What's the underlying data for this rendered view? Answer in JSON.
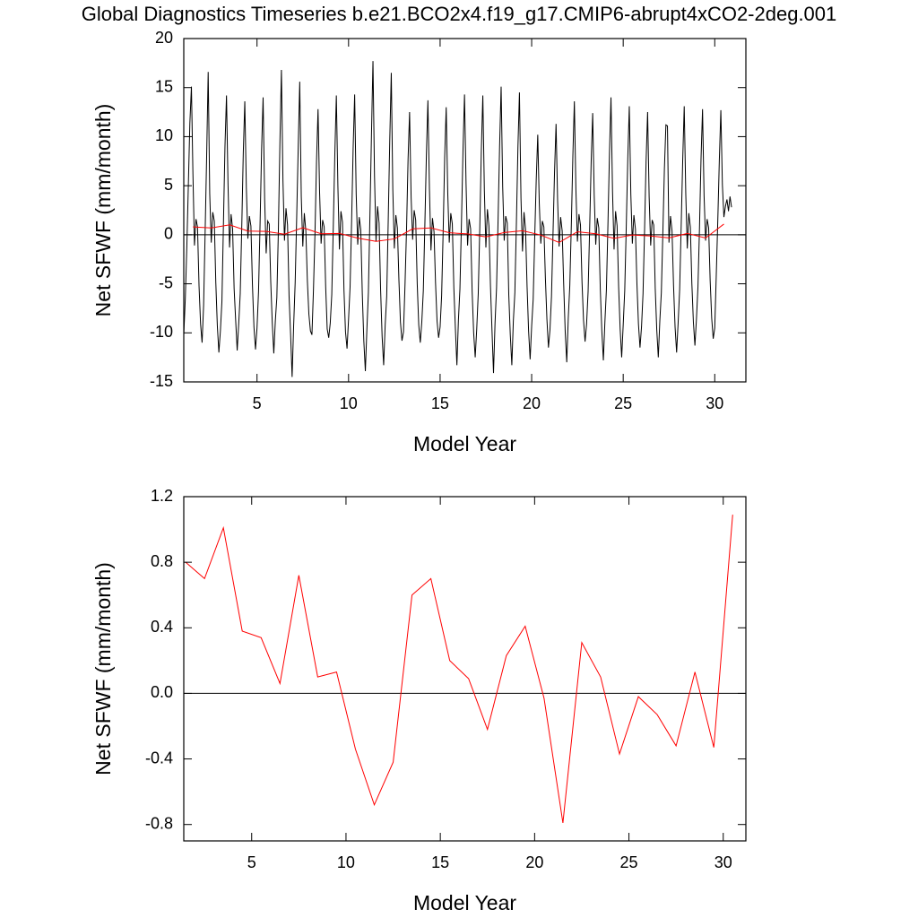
{
  "chart_data": [
    {
      "type": "line",
      "title": "Global Diagnostics Timeseries b.e21.BCO2x4.f19_g17.CMIP6-abrupt4xCO2-2deg.001",
      "x_label": "Model Year",
      "y_label": "Net SFWF (mm/month)",
      "xlim": [
        1,
        31.7
      ],
      "xticks": [
        5,
        10,
        15,
        20,
        25,
        30
      ],
      "ylim": [
        -15,
        20
      ],
      "yticks": [
        -15,
        -10,
        -5,
        0,
        5,
        10,
        15,
        20
      ],
      "zero_line": true,
      "series": [
        {
          "color": "#000000",
          "x": [
            1,
            1.083,
            1.167,
            1.25,
            1.333,
            1.417,
            1.5,
            1.583,
            1.667,
            1.75,
            1.833,
            1.917,
            2,
            2.083,
            2.167,
            2.25,
            2.333,
            2.417,
            2.5,
            2.583,
            2.667,
            2.75,
            2.833,
            2.917,
            3,
            3.083,
            3.167,
            3.25,
            3.333,
            3.417,
            3.5,
            3.583,
            3.667,
            3.75,
            3.833,
            3.917,
            4,
            4.083,
            4.167,
            4.25,
            4.333,
            4.417,
            4.5,
            4.583,
            4.667,
            4.75,
            4.833,
            4.917,
            5,
            5.083,
            5.167,
            5.25,
            5.333,
            5.417,
            5.5,
            5.583,
            5.667,
            5.75,
            5.833,
            5.917,
            6,
            6.083,
            6.167,
            6.25,
            6.333,
            6.417,
            6.5,
            6.583,
            6.667,
            6.75,
            6.833,
            6.917,
            7,
            7.083,
            7.167,
            7.25,
            7.333,
            7.417,
            7.5,
            7.583,
            7.667,
            7.75,
            7.833,
            7.917,
            8,
            8.083,
            8.167,
            8.25,
            8.333,
            8.417,
            8.5,
            8.583,
            8.667,
            8.75,
            8.833,
            8.917,
            9,
            9.083,
            9.167,
            9.25,
            9.333,
            9.417,
            9.5,
            9.583,
            9.667,
            9.75,
            9.833,
            9.917,
            10,
            10.083,
            10.167,
            10.25,
            10.333,
            10.417,
            10.5,
            10.583,
            10.667,
            10.75,
            10.833,
            10.917,
            11,
            11.083,
            11.167,
            11.25,
            11.333,
            11.417,
            11.5,
            11.583,
            11.667,
            11.75,
            11.833,
            11.917,
            12,
            12.083,
            12.167,
            12.25,
            12.333,
            12.417,
            12.5,
            12.583,
            12.667,
            12.75,
            12.833,
            12.917,
            13,
            13.083,
            13.167,
            13.25,
            13.333,
            13.417,
            13.5,
            13.583,
            13.667,
            13.75,
            13.833,
            13.917,
            14,
            14.083,
            14.167,
            14.25,
            14.333,
            14.417,
            14.5,
            14.583,
            14.667,
            14.75,
            14.833,
            14.917,
            15,
            15.083,
            15.167,
            15.25,
            15.333,
            15.417,
            15.5,
            15.583,
            15.667,
            15.75,
            15.833,
            15.917,
            16,
            16.083,
            16.167,
            16.25,
            16.333,
            16.417,
            16.5,
            16.583,
            16.667,
            16.75,
            16.833,
            16.917,
            17,
            17.083,
            17.167,
            17.25,
            17.333,
            17.417,
            17.5,
            17.583,
            17.667,
            17.75,
            17.833,
            17.917,
            18,
            18.083,
            18.167,
            18.25,
            18.333,
            18.417,
            18.5,
            18.583,
            18.667,
            18.75,
            18.833,
            18.917,
            19,
            19.083,
            19.167,
            19.25,
            19.333,
            19.417,
            19.5,
            19.583,
            19.667,
            19.75,
            19.833,
            19.917,
            20,
            20.083,
            20.167,
            20.25,
            20.333,
            20.417,
            20.5,
            20.583,
            20.667,
            20.75,
            20.833,
            20.917,
            21,
            21.083,
            21.167,
            21.25,
            21.333,
            21.417,
            21.5,
            21.583,
            21.667,
            21.75,
            21.833,
            21.917,
            22,
            22.083,
            22.167,
            22.25,
            22.333,
            22.417,
            22.5,
            22.583,
            22.667,
            22.75,
            22.833,
            22.917,
            23,
            23.083,
            23.167,
            23.25,
            23.333,
            23.417,
            23.5,
            23.583,
            23.667,
            23.75,
            23.833,
            23.917,
            24,
            24.083,
            24.167,
            24.25,
            24.333,
            24.417,
            24.5,
            24.583,
            24.667,
            24.75,
            24.833,
            24.917,
            25,
            25.083,
            25.167,
            25.25,
            25.333,
            25.417,
            25.5,
            25.583,
            25.667,
            25.75,
            25.833,
            25.917,
            26,
            26.083,
            26.167,
            26.25,
            26.333,
            26.417,
            26.5,
            26.583,
            26.667,
            26.75,
            26.833,
            26.917,
            27,
            27.083,
            27.167,
            27.25,
            27.333,
            27.417,
            27.5,
            27.583,
            27.667,
            27.75,
            27.833,
            27.917,
            28,
            28.083,
            28.167,
            28.25,
            28.333,
            28.417,
            28.5,
            28.583,
            28.667,
            28.75,
            28.833,
            28.917,
            29,
            29.083,
            29.167,
            29.25,
            29.333,
            29.417,
            29.5,
            29.583,
            29.667,
            29.75,
            29.833,
            29.917,
            30,
            30.083,
            30.167,
            30.25,
            30.333,
            30.417,
            30.5,
            30.583,
            30.667,
            30.75,
            30.833,
            30.917
          ],
          "values": [
            -10.2,
            -6.5,
            -1.2,
            5.1,
            11.4,
            15.1,
            6.2,
            -1.1,
            1.6,
            0.8,
            -5.2,
            -9.1,
            -11.0,
            -7.2,
            0.3,
            8.1,
            16.6,
            4.2,
            -0.8,
            2.3,
            1.4,
            -4.9,
            -9.3,
            -12.0,
            -9.8,
            -6.8,
            1.2,
            9.0,
            14.2,
            5.1,
            -1.3,
            2.1,
            0.6,
            -5.5,
            -8.7,
            -11.8,
            -9.1,
            -6.0,
            0.8,
            8.4,
            13.6,
            4.8,
            -0.4,
            1.9,
            0.9,
            -5.1,
            -9.4,
            -11.7,
            -9.5,
            -5.8,
            1.1,
            8.7,
            14.0,
            3.6,
            -1.9,
            1.4,
            1.1,
            -4.8,
            -9.0,
            -12.1,
            -8.8,
            -6.4,
            0.5,
            9.3,
            16.8,
            5.5,
            -0.6,
            2.7,
            1.0,
            -6.2,
            -10.1,
            -14.5,
            -9.3,
            -4.9,
            1.8,
            8.9,
            15.6,
            3.9,
            -1.2,
            2.2,
            0.4,
            -4.7,
            -8.1,
            -9.8,
            -10.2,
            -5.6,
            0.2,
            7.5,
            12.8,
            4.4,
            -0.9,
            1.5,
            0.8,
            -5.3,
            -9.6,
            -10.5,
            -9.0,
            -6.1,
            0.9,
            8.2,
            14.2,
            5.0,
            -1.5,
            2.4,
            1.3,
            -5.7,
            -9.9,
            -11.6,
            -8.6,
            -5.3,
            1.4,
            8.8,
            14.3,
            4.1,
            -1.0,
            1.8,
            0.5,
            -6.0,
            -10.8,
            -13.9,
            -9.7,
            -5.9,
            2.0,
            10.1,
            17.7,
            6.0,
            -0.7,
            2.9,
            1.2,
            -5.6,
            -10.4,
            -13.3,
            -9.2,
            -6.3,
            1.5,
            9.6,
            16.5,
            4.6,
            -1.4,
            2.0,
            0.7,
            -4.6,
            -8.9,
            -10.8,
            -9.9,
            -5.1,
            0.6,
            7.7,
            12.5,
            3.8,
            -0.5,
            2.5,
            1.5,
            -5.0,
            -9.2,
            -11.0,
            -8.9,
            -5.7,
            1.0,
            8.1,
            13.7,
            4.7,
            -1.6,
            1.7,
            0.3,
            -4.9,
            -8.8,
            -10.5,
            -9.4,
            -6.2,
            0.4,
            7.9,
            13.0,
            4.3,
            -0.8,
            2.2,
            1.1,
            -5.4,
            -9.5,
            -13.3,
            -8.7,
            -5.5,
            1.3,
            8.6,
            14.3,
            5.2,
            -1.1,
            1.6,
            0.6,
            -5.8,
            -10.0,
            -12.5,
            -9.6,
            -6.0,
            0.7,
            8.5,
            14.2,
            4.5,
            -1.3,
            2.6,
            0.9,
            -5.2,
            -9.7,
            -14.1,
            -9.0,
            -5.4,
            1.6,
            9.1,
            15.1,
            4.9,
            -0.6,
            1.9,
            1.2,
            -6.1,
            -10.2,
            -13.3,
            -8.8,
            -5.9,
            1.2,
            8.9,
            14.5,
            3.7,
            -1.7,
            2.3,
            0.5,
            -5.3,
            -9.8,
            -12.7,
            -9.3,
            -6.6,
            -0.3,
            5.6,
            10.2,
            3.2,
            -0.9,
            1.4,
            0.8,
            -4.4,
            -8.6,
            -11.5,
            -9.7,
            -6.3,
            0.1,
            6.4,
            11.3,
            3.5,
            -1.2,
            1.8,
            0.4,
            -5.1,
            -9.9,
            -13.0,
            -8.5,
            -5.2,
            1.0,
            8.0,
            13.6,
            4.6,
            -0.7,
            2.1,
            1.0,
            -4.8,
            -8.7,
            -10.9,
            -9.1,
            -5.8,
            0.6,
            7.4,
            12.4,
            4.0,
            -1.0,
            1.7,
            0.7,
            -5.6,
            -9.8,
            -12.8,
            -8.9,
            -5.6,
            1.1,
            8.3,
            14.0,
            4.4,
            -1.5,
            2.4,
            0.9,
            -5.3,
            -9.6,
            -12.5,
            -9.2,
            -5.7,
            0.8,
            7.8,
            13.1,
            4.1,
            -0.9,
            2.0,
            0.6,
            -5.0,
            -9.1,
            -11.5,
            -9.4,
            -6.0,
            0.5,
            7.5,
            12.5,
            3.9,
            -1.1,
            1.5,
            1.0,
            -5.5,
            -9.7,
            -12.5,
            -8.8,
            -5.9,
            0.3,
            6.7,
            11.2,
            11.1,
            -0.8,
            1.9,
            0.4,
            -5.2,
            -9.4,
            -12.0,
            -9.0,
            -5.6,
            0.9,
            7.6,
            13.1,
            4.2,
            -1.4,
            2.2,
            0.8,
            -5.0,
            -8.9,
            -11.3,
            -8.6,
            -5.3,
            0.7,
            7.7,
            12.8,
            4.0,
            -0.6,
            1.6,
            0.7,
            -4.7,
            -8.5,
            -10.6,
            -9.5,
            -4.1,
            1.5,
            7.6,
            12.7,
            5.1,
            1.8,
            2.9,
            3.6,
            2.4,
            3.9,
            2.8
          ]
        },
        {
          "color": "#ff0000",
          "x": [
            1.5,
            2.5,
            3.5,
            4.5,
            5.5,
            6.5,
            7.5,
            8.5,
            9.5,
            10.5,
            11.5,
            12.5,
            13.5,
            14.5,
            15.5,
            16.5,
            17.5,
            18.5,
            19.5,
            20.5,
            21.5,
            22.5,
            23.5,
            24.5,
            25.5,
            26.5,
            27.5,
            28.5,
            29.5,
            30.5
          ],
          "values": [
            0.8,
            0.7,
            1.01,
            0.38,
            0.34,
            0.06,
            0.72,
            0.1,
            0.13,
            -0.34,
            -0.68,
            -0.42,
            0.6,
            0.7,
            0.2,
            0.09,
            -0.22,
            0.23,
            0.41,
            -0.03,
            -0.79,
            0.31,
            0.1,
            -0.37,
            -0.02,
            -0.13,
            -0.32,
            0.13,
            -0.33,
            1.09
          ]
        }
      ]
    },
    {
      "type": "line",
      "x_label": "Model Year",
      "y_label": "Net SFWF (mm/month)",
      "xlim": [
        1.4,
        31.2
      ],
      "xticks": [
        5,
        10,
        15,
        20,
        25,
        30
      ],
      "ylim": [
        -0.9,
        1.2
      ],
      "yticks": [
        -0.8,
        -0.4,
        {
          "value": 0,
          "label": "0.0"
        },
        0.4,
        0.8,
        1.2
      ],
      "zero_line": true,
      "series": [
        {
          "color": "#ff0000",
          "x": [
            1.5,
            2.5,
            3.5,
            4.5,
            5.5,
            6.5,
            7.5,
            8.5,
            9.5,
            10.5,
            11.5,
            12.5,
            13.5,
            14.5,
            15.5,
            16.5,
            17.5,
            18.5,
            19.5,
            20.5,
            21.5,
            22.5,
            23.5,
            24.5,
            25.5,
            26.5,
            27.5,
            28.5,
            29.5,
            30.5
          ],
          "values": [
            0.8,
            0.7,
            1.01,
            0.38,
            0.34,
            0.06,
            0.72,
            0.1,
            0.13,
            -0.34,
            -0.68,
            -0.42,
            0.6,
            0.7,
            0.2,
            0.09,
            -0.22,
            0.23,
            0.41,
            -0.03,
            -0.79,
            0.31,
            0.1,
            -0.37,
            -0.02,
            -0.13,
            -0.32,
            0.13,
            -0.33,
            1.09
          ]
        }
      ]
    }
  ]
}
